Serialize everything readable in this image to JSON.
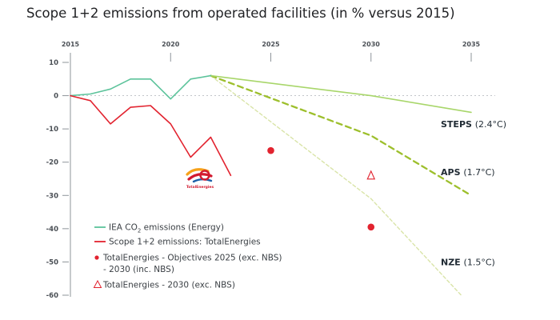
{
  "title": "Scope 1+2 emissions from operated facilities (in % versus 2015)",
  "colors": {
    "iea": "#5cc39b",
    "total": "#e2232f",
    "steps": "#a8d66a",
    "aps": "#9dbf2c",
    "nze": "#d9e4a8",
    "axis": "#8e949a"
  },
  "chart_data": {
    "type": "line",
    "title": "Scope 1+2 emissions from operated facilities (in % versus 2015)",
    "xlabel": "",
    "ylabel": "",
    "xlim": [
      2015,
      2035
    ],
    "ylim": [
      -60,
      10
    ],
    "x_ticks": [
      2015,
      2020,
      2025,
      2030,
      2035
    ],
    "y_ticks": [
      10,
      0,
      -10,
      -20,
      -30,
      -40,
      -50,
      -60
    ],
    "y_tick_labels": [
      "10",
      "0",
      "-10",
      "-20",
      "-30",
      "-40",
      "-50",
      "-60"
    ],
    "grid": false,
    "legend_placement": "bottom-left",
    "series": [
      {
        "name": "IEA CO₂ emissions (Energy)",
        "key": "iea",
        "style": "solid",
        "points": [
          [
            2015,
            0
          ],
          [
            2016,
            0.5
          ],
          [
            2017,
            2
          ],
          [
            2018,
            5
          ],
          [
            2019,
            5
          ],
          [
            2020,
            -1
          ],
          [
            2021,
            5
          ],
          [
            2022,
            6
          ]
        ]
      },
      {
        "name": "Scope 1+2 emissions: TotalEnergies",
        "key": "total",
        "style": "solid",
        "points": [
          [
            2015,
            0
          ],
          [
            2016,
            -1.5
          ],
          [
            2017,
            -8.5
          ],
          [
            2018,
            -3.5
          ],
          [
            2019,
            -3
          ],
          [
            2020,
            -8.5
          ],
          [
            2021,
            -18.5
          ],
          [
            2022,
            -12.5
          ],
          [
            2023,
            -24
          ]
        ]
      },
      {
        "name": "STEPS",
        "key": "steps",
        "style": "solid",
        "points": [
          [
            2022,
            6
          ],
          [
            2030,
            0
          ],
          [
            2035,
            -5
          ]
        ]
      },
      {
        "name": "APS",
        "key": "aps",
        "style": "dashed",
        "points": [
          [
            2022,
            6
          ],
          [
            2030,
            -12
          ],
          [
            2035,
            -30
          ]
        ]
      },
      {
        "name": "NZE",
        "key": "nze",
        "style": "dashed-light",
        "points": [
          [
            2022,
            6
          ],
          [
            2030,
            -31
          ],
          [
            2034.5,
            -60
          ]
        ]
      }
    ],
    "markers": [
      {
        "name": "TotalEnergies - Objectives 2025 (exc. NBS) - 2030 (inc. NBS)",
        "shape": "dot",
        "points": [
          [
            2025,
            -16.5
          ],
          [
            2030,
            -39.5
          ]
        ]
      },
      {
        "name": "TotalEnergies - 2030 (exc. NBS)",
        "shape": "triangle",
        "points": [
          [
            2030,
            -24
          ]
        ]
      }
    ],
    "scenario_labels": [
      {
        "name": "STEPS",
        "temp": "(2.4°C)",
        "y": -8.5
      },
      {
        "name": "APS",
        "temp": "(1.7°C)",
        "y": -23
      },
      {
        "name": "NZE",
        "temp": "(1.5°C)",
        "y": -50
      }
    ],
    "legend": [
      {
        "kind": "line",
        "key": "iea",
        "pre": "IEA CO",
        "sub": "2",
        "post": " emissions (Energy)"
      },
      {
        "kind": "line",
        "key": "total",
        "text": "Scope 1+2 emissions: TotalEnergies"
      },
      {
        "kind": "dot",
        "key": "total",
        "text": "TotalEnergies - Objectives 2025 (exc. NBS)",
        "text2": "- 2030 (inc. NBS)"
      },
      {
        "kind": "triangle",
        "key": "total",
        "text": "TotalEnergies - 2030 (exc. NBS)"
      }
    ]
  },
  "logo": {
    "icon_name": "totalenergies-logo-icon",
    "wordmark": "TotalEnergies"
  }
}
